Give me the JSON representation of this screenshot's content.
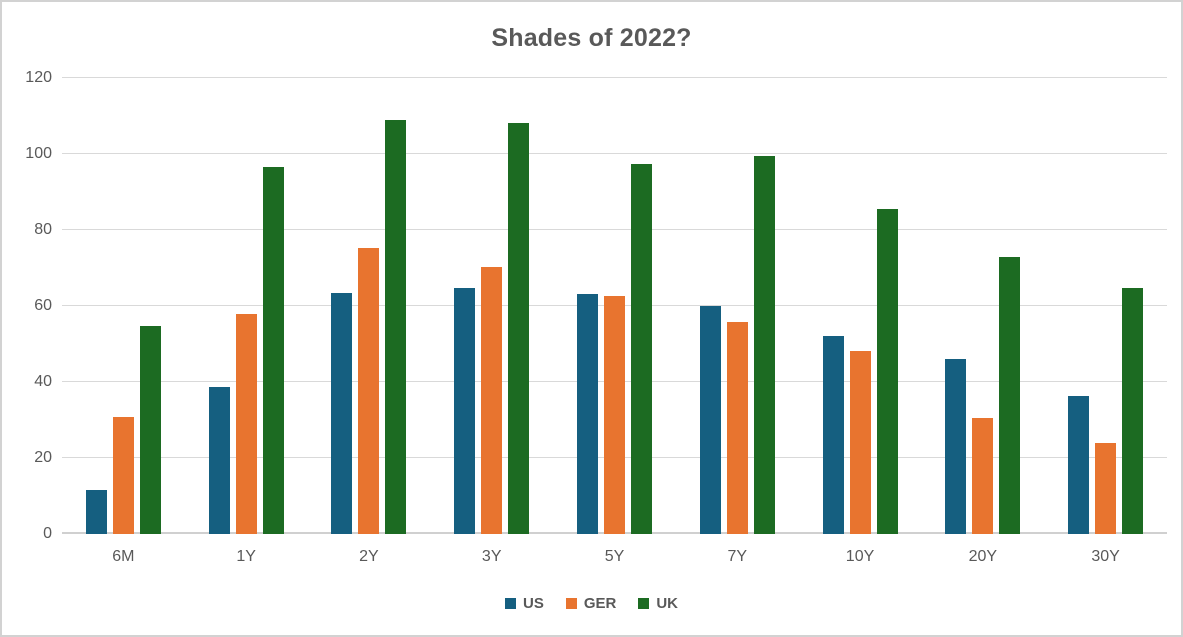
{
  "chart_data": {
    "type": "bar",
    "title": "Shades of 2022?",
    "xlabel": "",
    "ylabel": "",
    "categories": [
      "6M",
      "1Y",
      "2Y",
      "3Y",
      "5Y",
      "7Y",
      "10Y",
      "20Y",
      "30Y"
    ],
    "series": [
      {
        "name": "US",
        "color": "#155F80",
        "values": [
          11.5,
          38.8,
          63.5,
          64.8,
          63.2,
          60.0,
          52.2,
          46.1,
          36.4
        ]
      },
      {
        "name": "GER",
        "color": "#E8742F",
        "values": [
          30.9,
          58.0,
          75.3,
          70.3,
          62.6,
          55.9,
          48.2,
          30.6,
          23.9
        ]
      },
      {
        "name": "UK",
        "color": "#1C6B22",
        "values": [
          54.8,
          96.6,
          109.0,
          108.1,
          97.4,
          99.5,
          85.4,
          73.0,
          64.8
        ]
      }
    ],
    "ylim": [
      0,
      120
    ],
    "yticks": [
      0,
      20,
      40,
      60,
      80,
      100,
      120
    ],
    "grid": "horizontal",
    "legend_position": "bottom-center",
    "colors": {
      "title_text": "#595959",
      "axis_text": "#595959",
      "gridline": "#d9d9d9",
      "background": "#ffffff",
      "border": "#d2d2d2"
    }
  }
}
